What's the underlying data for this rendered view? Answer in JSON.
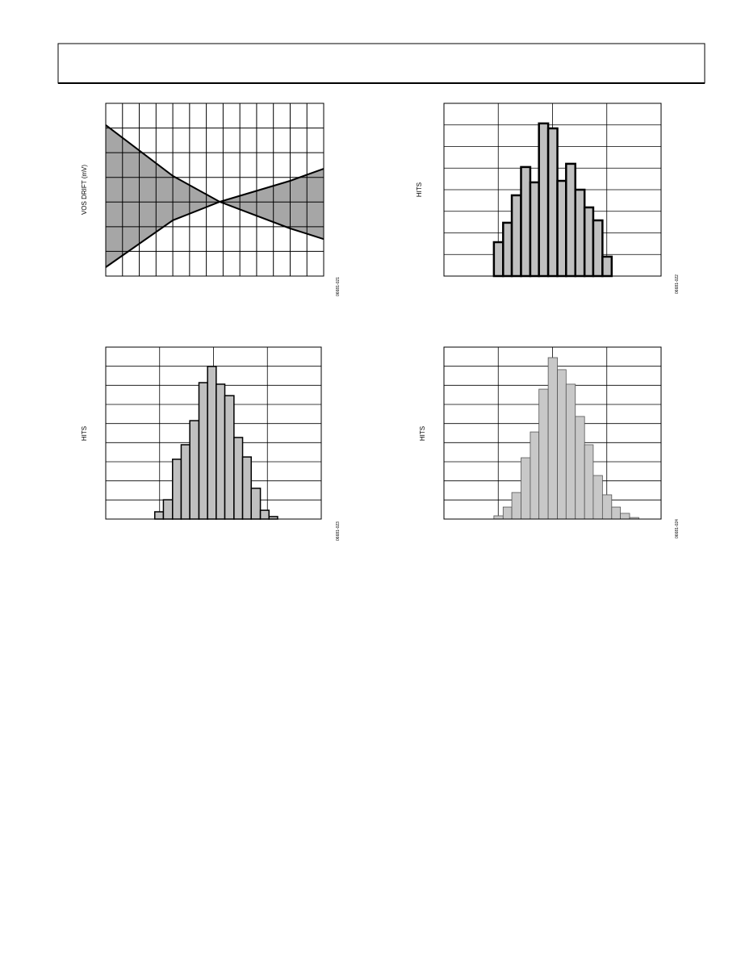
{
  "chart_data": [
    {
      "type": "line",
      "y_label": "VOS DRIFT (mV)",
      "figure_code": "06681-021",
      "x": [
        0,
        4,
        6.8,
        11,
        13
      ],
      "series": [
        {
          "color": "#000000",
          "values": [
            6.12,
            4.06,
            3.01,
            1.93,
            1.5
          ]
        },
        {
          "color": "#000000",
          "values": [
            0.36,
            2.26,
            3.01,
            3.86,
            4.35
          ]
        }
      ],
      "fill_between": "#a6a6a6",
      "xlim": [
        0,
        13
      ],
      "ylim": [
        0,
        7
      ],
      "xticks": [
        0,
        1,
        2,
        3,
        4,
        5,
        6,
        7,
        8,
        9,
        10,
        11,
        12,
        13
      ],
      "yticks": [
        0,
        1,
        2,
        3,
        4,
        5,
        6,
        7
      ],
      "grid": true
    },
    {
      "type": "histogram",
      "y_label": "HITS",
      "figure_code": "06681-022",
      "bins": [
        0.92,
        1.09,
        1.25,
        1.42,
        1.59,
        1.75,
        1.92,
        2.09,
        2.25,
        2.42,
        2.59,
        2.75,
        2.92,
        3.09
      ],
      "values": [
        1.57,
        2.47,
        3.74,
        5.05,
        4.34,
        7.07,
        6.84,
        4.41,
        5.2,
        4.0,
        3.18,
        2.58,
        0.9
      ],
      "color": "#c0c0c0",
      "edgecolor": "#000000",
      "linewidth": 2.5,
      "xlim": [
        0,
        4
      ],
      "ylim": [
        0,
        8
      ],
      "xticks": [
        0,
        1,
        2,
        3,
        4
      ],
      "yticks": [
        0,
        1,
        2,
        3,
        4,
        5,
        6,
        7,
        8
      ],
      "grid": true
    },
    {
      "type": "histogram",
      "y_label": "HITS",
      "figure_code": "06681-023",
      "bins": [
        0.91,
        1.07,
        1.24,
        1.4,
        1.56,
        1.73,
        1.89,
        2.05,
        2.21,
        2.38,
        2.54,
        2.7,
        2.87,
        3.03,
        3.19
      ],
      "values": [
        0.38,
        1.01,
        3.13,
        3.89,
        5.15,
        7.14,
        7.99,
        7.06,
        6.46,
        4.27,
        3.25,
        1.61,
        0.46,
        0.13
      ],
      "color": "#c0c0c0",
      "edgecolor": "#000000",
      "linewidth": 1.5,
      "xlim": [
        0,
        4
      ],
      "ylim": [
        0,
        9
      ],
      "xticks": [
        0,
        1,
        2,
        3,
        4
      ],
      "yticks": [
        0,
        1,
        2,
        3,
        4,
        5,
        6,
        7,
        8,
        9
      ],
      "grid": true
    },
    {
      "type": "histogram",
      "y_label": "HITS",
      "figure_code": "06681-024",
      "bins": [
        0.92,
        1.09,
        1.25,
        1.42,
        1.59,
        1.75,
        1.92,
        2.09,
        2.25,
        2.42,
        2.59,
        2.75,
        2.92,
        3.09,
        3.25,
        3.42,
        3.59
      ],
      "values": [
        0.17,
        0.63,
        1.39,
        3.21,
        4.56,
        6.8,
        8.45,
        7.82,
        7.06,
        5.37,
        3.89,
        2.28,
        1.27,
        0.63,
        0.3,
        0.08
      ],
      "color": "#c8c8c8",
      "edgecolor": "#555555",
      "linewidth": 0.8,
      "xlim": [
        0,
        4
      ],
      "ylim": [
        0,
        9
      ],
      "xticks": [
        0,
        1,
        2,
        3,
        4
      ],
      "yticks": [
        0,
        1,
        2,
        3,
        4,
        5,
        6,
        7,
        8,
        9
      ],
      "grid": true
    }
  ]
}
